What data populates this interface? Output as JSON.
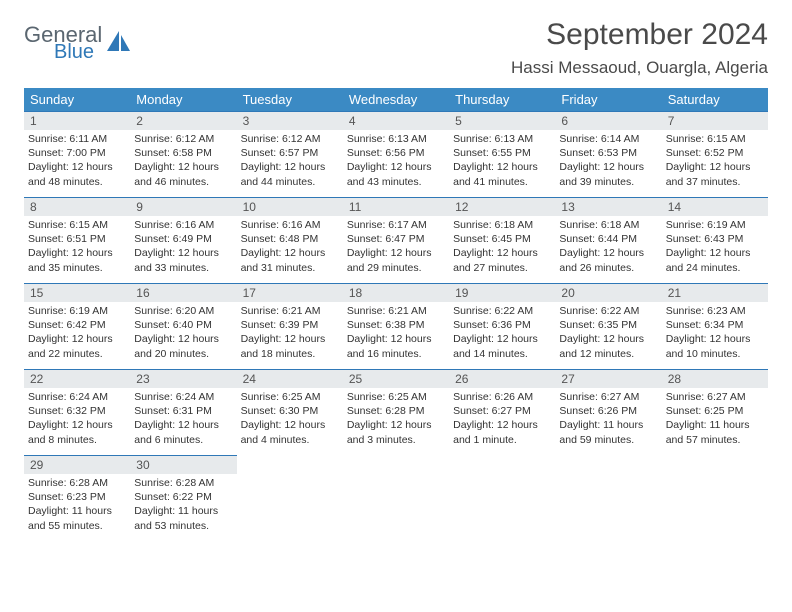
{
  "brand": {
    "general": "General",
    "blue": "Blue"
  },
  "header": {
    "month_title": "September 2024",
    "location": "Hassi Messaoud, Ouargla, Algeria"
  },
  "colors": {
    "header_bg": "#3b8ac4",
    "header_text": "#ffffff",
    "daynum_bg": "#e7eaec",
    "row_divider": "#2f78b7",
    "body_text": "#333333",
    "logo_gray": "#5a6670",
    "logo_blue": "#2f78b7"
  },
  "weekdays": [
    "Sunday",
    "Monday",
    "Tuesday",
    "Wednesday",
    "Thursday",
    "Friday",
    "Saturday"
  ],
  "days": [
    {
      "n": "1",
      "sunrise": "Sunrise: 6:11 AM",
      "sunset": "Sunset: 7:00 PM",
      "dl1": "Daylight: 12 hours",
      "dl2": "and 48 minutes."
    },
    {
      "n": "2",
      "sunrise": "Sunrise: 6:12 AM",
      "sunset": "Sunset: 6:58 PM",
      "dl1": "Daylight: 12 hours",
      "dl2": "and 46 minutes."
    },
    {
      "n": "3",
      "sunrise": "Sunrise: 6:12 AM",
      "sunset": "Sunset: 6:57 PM",
      "dl1": "Daylight: 12 hours",
      "dl2": "and 44 minutes."
    },
    {
      "n": "4",
      "sunrise": "Sunrise: 6:13 AM",
      "sunset": "Sunset: 6:56 PM",
      "dl1": "Daylight: 12 hours",
      "dl2": "and 43 minutes."
    },
    {
      "n": "5",
      "sunrise": "Sunrise: 6:13 AM",
      "sunset": "Sunset: 6:55 PM",
      "dl1": "Daylight: 12 hours",
      "dl2": "and 41 minutes."
    },
    {
      "n": "6",
      "sunrise": "Sunrise: 6:14 AM",
      "sunset": "Sunset: 6:53 PM",
      "dl1": "Daylight: 12 hours",
      "dl2": "and 39 minutes."
    },
    {
      "n": "7",
      "sunrise": "Sunrise: 6:15 AM",
      "sunset": "Sunset: 6:52 PM",
      "dl1": "Daylight: 12 hours",
      "dl2": "and 37 minutes."
    },
    {
      "n": "8",
      "sunrise": "Sunrise: 6:15 AM",
      "sunset": "Sunset: 6:51 PM",
      "dl1": "Daylight: 12 hours",
      "dl2": "and 35 minutes."
    },
    {
      "n": "9",
      "sunrise": "Sunrise: 6:16 AM",
      "sunset": "Sunset: 6:49 PM",
      "dl1": "Daylight: 12 hours",
      "dl2": "and 33 minutes."
    },
    {
      "n": "10",
      "sunrise": "Sunrise: 6:16 AM",
      "sunset": "Sunset: 6:48 PM",
      "dl1": "Daylight: 12 hours",
      "dl2": "and 31 minutes."
    },
    {
      "n": "11",
      "sunrise": "Sunrise: 6:17 AM",
      "sunset": "Sunset: 6:47 PM",
      "dl1": "Daylight: 12 hours",
      "dl2": "and 29 minutes."
    },
    {
      "n": "12",
      "sunrise": "Sunrise: 6:18 AM",
      "sunset": "Sunset: 6:45 PM",
      "dl1": "Daylight: 12 hours",
      "dl2": "and 27 minutes."
    },
    {
      "n": "13",
      "sunrise": "Sunrise: 6:18 AM",
      "sunset": "Sunset: 6:44 PM",
      "dl1": "Daylight: 12 hours",
      "dl2": "and 26 minutes."
    },
    {
      "n": "14",
      "sunrise": "Sunrise: 6:19 AM",
      "sunset": "Sunset: 6:43 PM",
      "dl1": "Daylight: 12 hours",
      "dl2": "and 24 minutes."
    },
    {
      "n": "15",
      "sunrise": "Sunrise: 6:19 AM",
      "sunset": "Sunset: 6:42 PM",
      "dl1": "Daylight: 12 hours",
      "dl2": "and 22 minutes."
    },
    {
      "n": "16",
      "sunrise": "Sunrise: 6:20 AM",
      "sunset": "Sunset: 6:40 PM",
      "dl1": "Daylight: 12 hours",
      "dl2": "and 20 minutes."
    },
    {
      "n": "17",
      "sunrise": "Sunrise: 6:21 AM",
      "sunset": "Sunset: 6:39 PM",
      "dl1": "Daylight: 12 hours",
      "dl2": "and 18 minutes."
    },
    {
      "n": "18",
      "sunrise": "Sunrise: 6:21 AM",
      "sunset": "Sunset: 6:38 PM",
      "dl1": "Daylight: 12 hours",
      "dl2": "and 16 minutes."
    },
    {
      "n": "19",
      "sunrise": "Sunrise: 6:22 AM",
      "sunset": "Sunset: 6:36 PM",
      "dl1": "Daylight: 12 hours",
      "dl2": "and 14 minutes."
    },
    {
      "n": "20",
      "sunrise": "Sunrise: 6:22 AM",
      "sunset": "Sunset: 6:35 PM",
      "dl1": "Daylight: 12 hours",
      "dl2": "and 12 minutes."
    },
    {
      "n": "21",
      "sunrise": "Sunrise: 6:23 AM",
      "sunset": "Sunset: 6:34 PM",
      "dl1": "Daylight: 12 hours",
      "dl2": "and 10 minutes."
    },
    {
      "n": "22",
      "sunrise": "Sunrise: 6:24 AM",
      "sunset": "Sunset: 6:32 PM",
      "dl1": "Daylight: 12 hours",
      "dl2": "and 8 minutes."
    },
    {
      "n": "23",
      "sunrise": "Sunrise: 6:24 AM",
      "sunset": "Sunset: 6:31 PM",
      "dl1": "Daylight: 12 hours",
      "dl2": "and 6 minutes."
    },
    {
      "n": "24",
      "sunrise": "Sunrise: 6:25 AM",
      "sunset": "Sunset: 6:30 PM",
      "dl1": "Daylight: 12 hours",
      "dl2": "and 4 minutes."
    },
    {
      "n": "25",
      "sunrise": "Sunrise: 6:25 AM",
      "sunset": "Sunset: 6:28 PM",
      "dl1": "Daylight: 12 hours",
      "dl2": "and 3 minutes."
    },
    {
      "n": "26",
      "sunrise": "Sunrise: 6:26 AM",
      "sunset": "Sunset: 6:27 PM",
      "dl1": "Daylight: 12 hours",
      "dl2": "and 1 minute."
    },
    {
      "n": "27",
      "sunrise": "Sunrise: 6:27 AM",
      "sunset": "Sunset: 6:26 PM",
      "dl1": "Daylight: 11 hours",
      "dl2": "and 59 minutes."
    },
    {
      "n": "28",
      "sunrise": "Sunrise: 6:27 AM",
      "sunset": "Sunset: 6:25 PM",
      "dl1": "Daylight: 11 hours",
      "dl2": "and 57 minutes."
    },
    {
      "n": "29",
      "sunrise": "Sunrise: 6:28 AM",
      "sunset": "Sunset: 6:23 PM",
      "dl1": "Daylight: 11 hours",
      "dl2": "and 55 minutes."
    },
    {
      "n": "30",
      "sunrise": "Sunrise: 6:28 AM",
      "sunset": "Sunset: 6:22 PM",
      "dl1": "Daylight: 11 hours",
      "dl2": "and 53 minutes."
    }
  ],
  "layout": {
    "leading_blanks": 0,
    "trailing_blanks": 5,
    "cols": 7
  }
}
